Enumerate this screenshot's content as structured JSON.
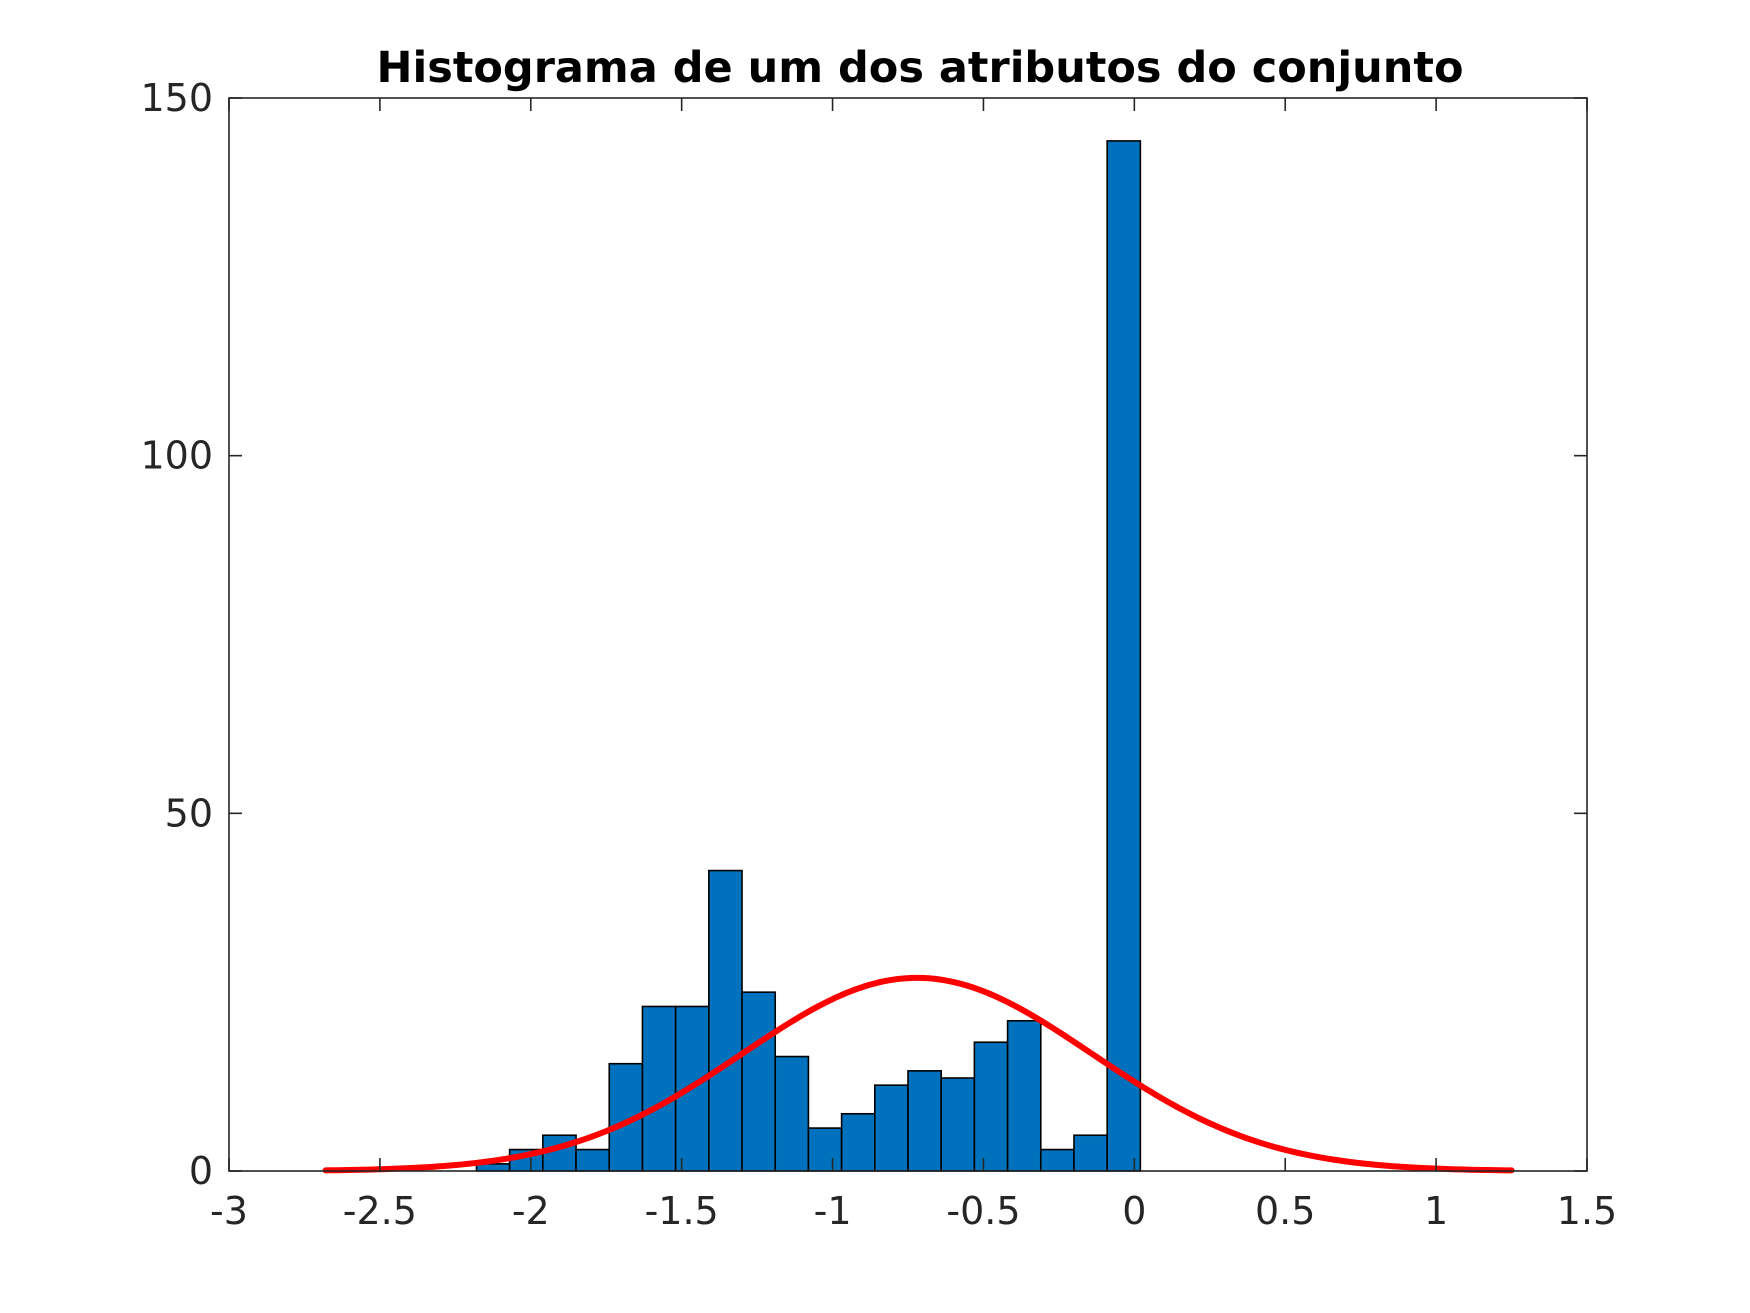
{
  "chart_data": {
    "type": "bar",
    "title": "Histograma de um dos atributos do conjunto",
    "xlabel": "",
    "ylabel": "",
    "xlim": [
      -3,
      1.5
    ],
    "ylim": [
      0,
      150
    ],
    "xticks": [
      -3,
      -2.5,
      -2,
      -1.5,
      -1,
      -0.5,
      0,
      0.5,
      1,
      1.5
    ],
    "xtick_labels": [
      "-3",
      "-2.5",
      "-2",
      "-1.5",
      "-1",
      "-0.5",
      "0",
      "0.5",
      "1",
      "1.5"
    ],
    "yticks": [
      0,
      50,
      100,
      150
    ],
    "ytick_labels": [
      "0",
      "50",
      "100",
      "150"
    ],
    "grid": false,
    "bin_edges": [
      -2.18,
      -2.07,
      -1.96,
      -1.85,
      -1.74,
      -1.63,
      -1.52,
      -1.41,
      -1.3,
      -1.19,
      -1.08,
      -0.97,
      -0.86,
      -0.75,
      -0.64,
      -0.53,
      -0.42,
      -0.31,
      -0.2,
      -0.09,
      0.02
    ],
    "bin_counts": [
      1,
      3,
      5,
      3,
      15,
      23,
      23,
      42,
      25,
      16,
      6,
      8,
      12,
      14,
      13,
      18,
      21,
      3,
      5,
      144
    ],
    "bar_color": "#0072BD",
    "bar_edge_color": "#000000",
    "fit_curve": {
      "type": "normal",
      "mean": -0.72,
      "std": 0.58,
      "peak": 27,
      "x_range": [
        -2.68,
        1.25
      ],
      "color": "#FF0000"
    }
  }
}
